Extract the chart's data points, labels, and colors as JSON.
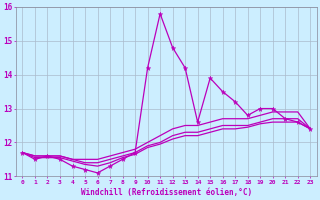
{
  "xlabel": "Windchill (Refroidissement éolien,°C)",
  "background_color": "#cceeff",
  "grid_color": "#aabbcc",
  "line_color": "#bb00bb",
  "xlim": [
    -0.5,
    23.5
  ],
  "ylim": [
    11,
    16
  ],
  "yticks": [
    11,
    12,
    13,
    14,
    15,
    16
  ],
  "xticks": [
    0,
    1,
    2,
    3,
    4,
    5,
    6,
    7,
    8,
    9,
    10,
    11,
    12,
    13,
    14,
    15,
    16,
    17,
    18,
    19,
    20,
    21,
    22,
    23
  ],
  "hours": [
    0,
    1,
    2,
    3,
    4,
    5,
    6,
    7,
    8,
    9,
    10,
    11,
    12,
    13,
    14,
    15,
    16,
    17,
    18,
    19,
    20,
    21,
    22,
    23
  ],
  "line_main": [
    11.7,
    11.5,
    11.6,
    11.5,
    11.3,
    11.2,
    11.1,
    11.3,
    11.5,
    11.7,
    14.2,
    15.8,
    14.8,
    14.2,
    12.6,
    13.9,
    13.5,
    13.2,
    12.8,
    13.0,
    13.0,
    12.7,
    12.6,
    12.4
  ],
  "line_smooth1": [
    11.7,
    11.6,
    11.6,
    11.6,
    11.5,
    11.5,
    11.5,
    11.6,
    11.7,
    11.8,
    12.0,
    12.2,
    12.4,
    12.5,
    12.5,
    12.6,
    12.7,
    12.7,
    12.7,
    12.8,
    12.9,
    12.9,
    12.9,
    12.4
  ],
  "line_smooth2": [
    11.7,
    11.6,
    11.6,
    11.6,
    11.5,
    11.4,
    11.4,
    11.5,
    11.6,
    11.7,
    11.9,
    12.0,
    12.2,
    12.3,
    12.3,
    12.4,
    12.5,
    12.5,
    12.5,
    12.6,
    12.7,
    12.7,
    12.7,
    12.4
  ],
  "line_smooth3": [
    11.7,
    11.55,
    11.55,
    11.55,
    11.45,
    11.35,
    11.3,
    11.4,
    11.55,
    11.65,
    11.85,
    11.95,
    12.1,
    12.2,
    12.2,
    12.3,
    12.4,
    12.4,
    12.45,
    12.55,
    12.6,
    12.6,
    12.6,
    12.4
  ]
}
